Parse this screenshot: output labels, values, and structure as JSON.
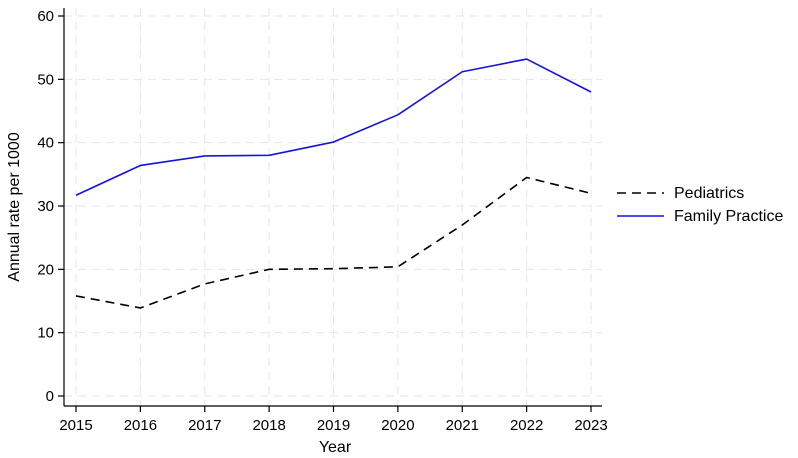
{
  "chart_data": {
    "type": "line",
    "xlabel": "Year",
    "ylabel": "Annual rate per 1000",
    "x": [
      2015,
      2016,
      2017,
      2018,
      2019,
      2020,
      2021,
      2022,
      2023
    ],
    "xlim": [
      2015,
      2023
    ],
    "ylim": [
      0,
      60
    ],
    "yticks": [
      0,
      10,
      20,
      30,
      40,
      50,
      60
    ],
    "grid": true,
    "legend_position": "right",
    "series": [
      {
        "name": "Pediatrics",
        "values": [
          15.8,
          13.9,
          17.7,
          20.0,
          20.1,
          20.4,
          27.0,
          34.5,
          32.0
        ],
        "color": "#000000",
        "style": "dashed"
      },
      {
        "name": "Family Practice",
        "values": [
          31.7,
          36.4,
          37.9,
          38.0,
          40.1,
          44.4,
          51.2,
          53.2,
          48.0
        ],
        "color": "#1414d9",
        "style": "solid"
      }
    ]
  }
}
